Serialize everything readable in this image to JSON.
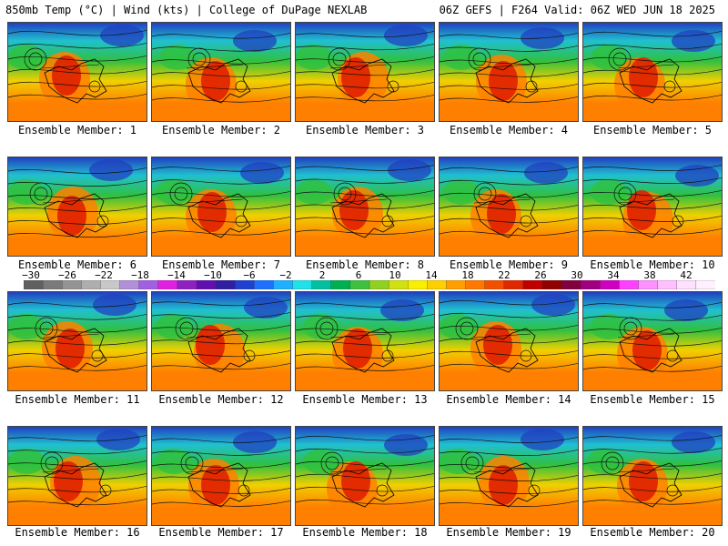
{
  "header": {
    "left": "850mb Temp (°C) | Wind (kts) | College of DuPage NEXLAB",
    "right": "06Z GEFS | F264 Valid: 06Z WED JUN 18 2025"
  },
  "members": [
    "Ensemble Member: 1",
    "Ensemble Member: 2",
    "Ensemble Member: 3",
    "Ensemble Member: 4",
    "Ensemble Member: 5",
    "Ensemble Member: 6",
    "Ensemble Member: 7",
    "Ensemble Member: 8",
    "Ensemble Member: 9",
    "Ensemble Member: 10",
    "Ensemble Member: 11",
    "Ensemble Member: 12",
    "Ensemble Member: 13",
    "Ensemble Member: 14",
    "Ensemble Member: 15",
    "Ensemble Member: 16",
    "Ensemble Member: 17",
    "Ensemble Member: 18",
    "Ensemble Member: 19",
    "Ensemble Member: 20"
  ],
  "colorbar": {
    "ticks": [
      "−30",
      "−26",
      "−22",
      "−18",
      "−14",
      "−10",
      "−6",
      "−2",
      "2",
      "6",
      "10",
      "14",
      "18",
      "22",
      "26",
      "30",
      "34",
      "38",
      "42"
    ],
    "colors": [
      "#606060",
      "#7a7a7a",
      "#949494",
      "#aeaeae",
      "#c8c8c8",
      "#b090d8",
      "#a060e0",
      "#e020e0",
      "#9020c0",
      "#6010b0",
      "#3020a0",
      "#2040d0",
      "#2070ff",
      "#20b0ff",
      "#20e0e8",
      "#00c0a0",
      "#00b050",
      "#40c040",
      "#90d020",
      "#d0e010",
      "#f8f000",
      "#ffd000",
      "#ffa000",
      "#ff7800",
      "#f05000",
      "#e02800",
      "#c00000",
      "#900000",
      "#800040",
      "#a00080",
      "#d000c0",
      "#ff40ff",
      "#ff90ff",
      "#ffc0ff",
      "#ffe0ff",
      "#fff0ff"
    ]
  },
  "map_colors": {
    "cold": "#2040c0",
    "cool": "#20c0d0",
    "mild": "#30c040",
    "warm": "#f0d000",
    "hot": "#ff8000",
    "very_hot": "#e02000"
  }
}
